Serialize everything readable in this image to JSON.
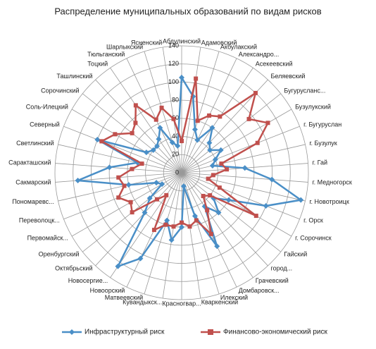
{
  "chart_data": {
    "type": "radar",
    "title": "Распределение муниципальных образований по видам рисков",
    "categories": [
      "Абдулинский",
      "Адамовский",
      "Акбулакский",
      "Александро...",
      "Асекеевский",
      "Беляевский",
      "Бугурусланс...",
      "Бузулукский",
      "г. Бугуруслан",
      "г. Бузулук",
      "г. Гай",
      "г. Медногорск",
      "г. Новотроицк",
      "г. Орск",
      "г. Сорочинск",
      "Гайский",
      "город...",
      "Грачевский",
      "Домбаровск...",
      "Илекский",
      "Кваркенский",
      "Красногвар...",
      "Кувандыкск...",
      "Матвеевский",
      "Новоорский",
      "Новосергие...",
      "Октябрьский",
      "Оренбургский",
      "Первомайск...",
      "Переволоцк...",
      "Пономаревс...",
      "Сакмарский",
      "Саракташский",
      "Светлинский",
      "Северный",
      "Соль-Илецкий",
      "Сорочинский",
      "Ташлинский",
      "Тоцкий",
      "Тюльганский",
      "Шарлыкский",
      "Ясненский"
    ],
    "series": [
      {
        "name": "Инфраструктурный риск",
        "color": "#4a8fc7",
        "marker": "diamond",
        "values": [
          105,
          85,
          50,
          40,
          60,
          45,
          40,
          50,
          40,
          35,
          70,
          100,
          135,
          100,
          60,
          45,
          60,
          45,
          90,
          50,
          15,
          60,
          75,
          55,
          105,
          125,
          60,
          45,
          25,
          30,
          60,
          115,
          80,
          50,
          100,
          45,
          40,
          40,
          45,
          55,
          35,
          30
        ]
      },
      {
        "name": "Финансово-экономический риск",
        "color": "#c0504d",
        "marker": "square",
        "values": [
          35,
          105,
          60,
          70,
          75,
          120,
          95,
          110,
          90,
          45,
          50,
          35,
          30,
          45,
          95,
          40,
          35,
          50,
          75,
          55,
          60,
          55,
          60,
          60,
          70,
          30,
          40,
          70,
          65,
          75,
          65,
          70,
          55,
          45,
          95,
          85,
          70,
          75,
          90,
          65,
          75,
          60
        ]
      }
    ],
    "rlim": [
      0,
      140
    ],
    "rticks": [
      0,
      20,
      40,
      60,
      80,
      100,
      120,
      140
    ],
    "grid": true
  }
}
